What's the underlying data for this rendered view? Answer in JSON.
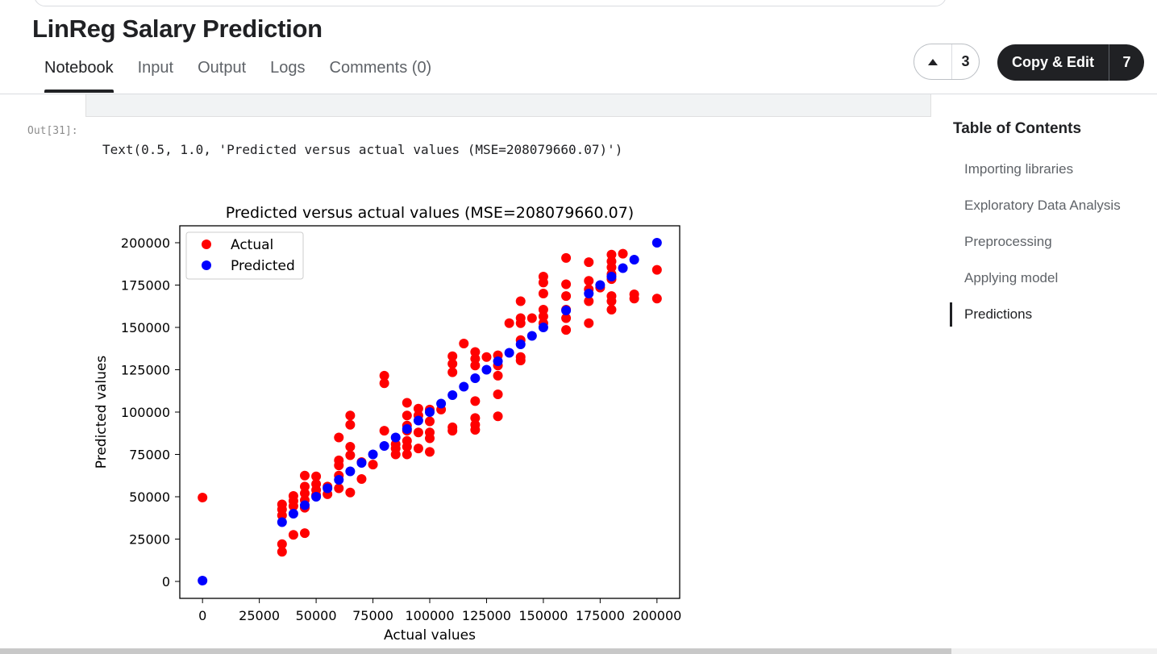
{
  "notebook": {
    "title": "LinReg Salary Prediction",
    "tabs": [
      {
        "label": "Notebook",
        "active": true
      },
      {
        "label": "Input",
        "active": false
      },
      {
        "label": "Output",
        "active": false
      },
      {
        "label": "Logs",
        "active": false
      },
      {
        "label": "Comments (0)",
        "active": false
      }
    ],
    "upvote_count": "3",
    "copy_edit_label": "Copy & Edit",
    "copy_edit_count": "7"
  },
  "cell": {
    "out_prompt": "Out[31]:",
    "output_text": "Text(0.5, 1.0, 'Predicted versus actual values (MSE=208079660.07)')"
  },
  "toc": {
    "title": "Table of Contents",
    "items": [
      {
        "label": "Importing libraries",
        "active": false
      },
      {
        "label": "Exploratory Data Analysis",
        "active": false
      },
      {
        "label": "Preprocessing",
        "active": false
      },
      {
        "label": "Applying model",
        "active": false
      },
      {
        "label": "Predictions",
        "active": true
      }
    ]
  },
  "colors": {
    "actual": "#ff0000",
    "predicted": "#0000ff",
    "button_dark": "#202124"
  },
  "icons": {
    "upvote": "triangle-up-icon"
  },
  "chart_data": {
    "type": "scatter",
    "title": "Predicted versus actual values (MSE=208079660.07)",
    "xlabel": "Actual values",
    "ylabel": "Predicted values",
    "xlim": [
      -10000,
      210000
    ],
    "ylim": [
      -10000,
      210000
    ],
    "xticks": [
      0,
      25000,
      50000,
      75000,
      100000,
      125000,
      150000,
      175000,
      200000
    ],
    "yticks": [
      0,
      25000,
      50000,
      75000,
      100000,
      125000,
      150000,
      175000,
      200000
    ],
    "legend": {
      "position": "top-left",
      "entries": [
        "Actual",
        "Predicted"
      ]
    },
    "series": [
      {
        "name": "Actual",
        "color": "#ff0000",
        "points": [
          [
            0,
            49500
          ],
          [
            35000,
            45500
          ],
          [
            35000,
            42500
          ],
          [
            35000,
            39000
          ],
          [
            35000,
            22000
          ],
          [
            35000,
            17500
          ],
          [
            40000,
            50500
          ],
          [
            40000,
            47500
          ],
          [
            40000,
            44500
          ],
          [
            40000,
            27500
          ],
          [
            45000,
            62500
          ],
          [
            45000,
            56000
          ],
          [
            45000,
            52000
          ],
          [
            45000,
            48000
          ],
          [
            45000,
            43500
          ],
          [
            45000,
            28500
          ],
          [
            50000,
            62000
          ],
          [
            50000,
            57500
          ],
          [
            50000,
            54000
          ],
          [
            50000,
            51000
          ],
          [
            55000,
            56000
          ],
          [
            55000,
            51500
          ],
          [
            60000,
            85000
          ],
          [
            60000,
            71500
          ],
          [
            60000,
            68500
          ],
          [
            60000,
            62500
          ],
          [
            60000,
            55000
          ],
          [
            65000,
            98000
          ],
          [
            65000,
            92500
          ],
          [
            65000,
            79500
          ],
          [
            65000,
            74500
          ],
          [
            65000,
            52500
          ],
          [
            70000,
            70500
          ],
          [
            70000,
            60500
          ],
          [
            75000,
            69000
          ],
          [
            80000,
            121500
          ],
          [
            80000,
            117000
          ],
          [
            80000,
            89000
          ],
          [
            85000,
            81000
          ],
          [
            85000,
            78500
          ],
          [
            85000,
            75000
          ],
          [
            90000,
            105500
          ],
          [
            90000,
            98000
          ],
          [
            90000,
            92000
          ],
          [
            90000,
            89000
          ],
          [
            90000,
            83000
          ],
          [
            90000,
            79500
          ],
          [
            90000,
            75000
          ],
          [
            95000,
            102000
          ],
          [
            95000,
            98000
          ],
          [
            95000,
            88000
          ],
          [
            95000,
            78500
          ],
          [
            100000,
            101500
          ],
          [
            100000,
            94500
          ],
          [
            100000,
            88000
          ],
          [
            100000,
            84500
          ],
          [
            100000,
            76500
          ],
          [
            105000,
            101500
          ],
          [
            110000,
            133000
          ],
          [
            110000,
            128500
          ],
          [
            110000,
            123500
          ],
          [
            110000,
            91000
          ],
          [
            110000,
            89000
          ],
          [
            115000,
            140500
          ],
          [
            120000,
            135500
          ],
          [
            120000,
            131500
          ],
          [
            120000,
            127500
          ],
          [
            120000,
            106500
          ],
          [
            120000,
            96500
          ],
          [
            120000,
            92500
          ],
          [
            120000,
            89500
          ],
          [
            125000,
            132500
          ],
          [
            130000,
            133500
          ],
          [
            130000,
            127500
          ],
          [
            130000,
            121500
          ],
          [
            130000,
            110500
          ],
          [
            130000,
            97500
          ],
          [
            135000,
            152500
          ],
          [
            140000,
            165500
          ],
          [
            140000,
            155500
          ],
          [
            140000,
            152500
          ],
          [
            140000,
            142500
          ],
          [
            140000,
            132500
          ],
          [
            140000,
            130500
          ],
          [
            145000,
            155500
          ],
          [
            150000,
            180000
          ],
          [
            150000,
            176500
          ],
          [
            150000,
            170000
          ],
          [
            150000,
            160500
          ],
          [
            150000,
            156500
          ],
          [
            150000,
            152500
          ],
          [
            160000,
            191000
          ],
          [
            160000,
            175500
          ],
          [
            160000,
            168500
          ],
          [
            160000,
            160500
          ],
          [
            160000,
            155500
          ],
          [
            160000,
            148500
          ],
          [
            170000,
            188500
          ],
          [
            170000,
            177500
          ],
          [
            170000,
            172500
          ],
          [
            170000,
            165500
          ],
          [
            170000,
            152500
          ],
          [
            175000,
            173500
          ],
          [
            180000,
            193000
          ],
          [
            180000,
            189000
          ],
          [
            180000,
            185500
          ],
          [
            180000,
            181500
          ],
          [
            180000,
            178500
          ],
          [
            180000,
            168500
          ],
          [
            180000,
            165500
          ],
          [
            180000,
            160500
          ],
          [
            185000,
            193500
          ],
          [
            190000,
            169500
          ],
          [
            190000,
            167000
          ],
          [
            200000,
            184000
          ],
          [
            200000,
            167000
          ]
        ]
      },
      {
        "name": "Predicted",
        "color": "#0000ff",
        "points": [
          [
            0,
            500
          ],
          [
            35000,
            35000
          ],
          [
            40000,
            40000
          ],
          [
            45000,
            45000
          ],
          [
            50000,
            50000
          ],
          [
            55000,
            55000
          ],
          [
            60000,
            60000
          ],
          [
            65000,
            65000
          ],
          [
            70000,
            70000
          ],
          [
            75000,
            75000
          ],
          [
            80000,
            80000
          ],
          [
            85000,
            85000
          ],
          [
            90000,
            90000
          ],
          [
            95000,
            95000
          ],
          [
            100000,
            100000
          ],
          [
            105000,
            105000
          ],
          [
            110000,
            110000
          ],
          [
            115000,
            115000
          ],
          [
            120000,
            120000
          ],
          [
            125000,
            125000
          ],
          [
            130000,
            130000
          ],
          [
            135000,
            135000
          ],
          [
            140000,
            140000
          ],
          [
            145000,
            145000
          ],
          [
            150000,
            150000
          ],
          [
            160000,
            160000
          ],
          [
            170000,
            170000
          ],
          [
            175000,
            175000
          ],
          [
            180000,
            180000
          ],
          [
            185000,
            185000
          ],
          [
            190000,
            190000
          ],
          [
            200000,
            200000
          ]
        ]
      }
    ]
  }
}
